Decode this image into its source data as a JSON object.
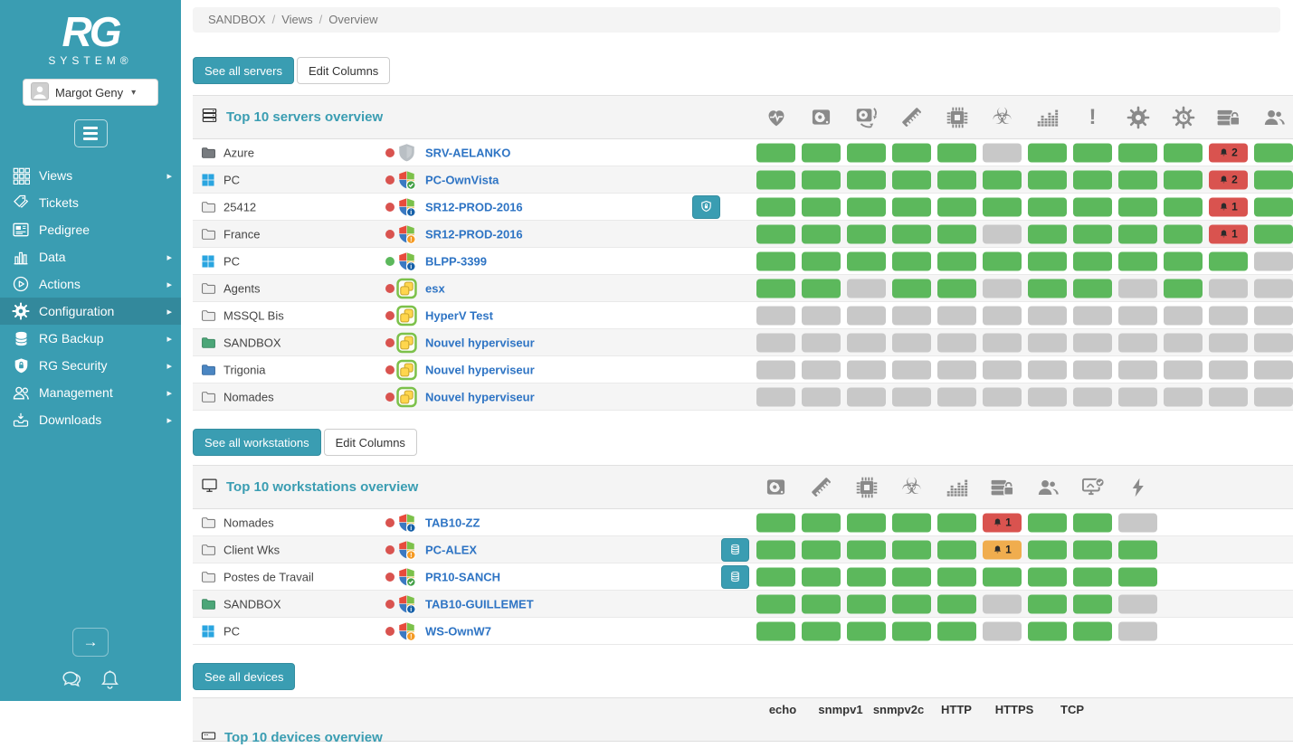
{
  "colors": {
    "accent": "#3a9db2",
    "green": "#5cb85c",
    "gray": "#c8c8c8",
    "red": "#d9534f",
    "orange": "#f0ad4e",
    "link_blue": "#2e74c4"
  },
  "sidebar": {
    "logo_text": "RG",
    "logo_subtext": "SYSTEM®",
    "user_name": "Margot Geny",
    "footer_icons": [
      "collapse-arrow-icon",
      "chat-icon",
      "bell-outline-icon"
    ],
    "items": [
      {
        "label": "Views",
        "icon": "grid-icon",
        "arrow": true,
        "active": false
      },
      {
        "label": "Tickets",
        "icon": "tags-icon",
        "arrow": false,
        "active": false
      },
      {
        "label": "Pedigree",
        "icon": "newspaper-icon",
        "arrow": false,
        "active": false
      },
      {
        "label": "Data",
        "icon": "bar-chart-icon",
        "arrow": true,
        "active": false
      },
      {
        "label": "Actions",
        "icon": "play-circle-icon",
        "arrow": true,
        "active": false
      },
      {
        "label": "Configuration",
        "icon": "gear-icon",
        "arrow": true,
        "active": true
      },
      {
        "label": "RG Backup",
        "icon": "database-icon",
        "arrow": true,
        "active": false
      },
      {
        "label": "RG Security",
        "icon": "shield-lock-icon",
        "arrow": true,
        "active": false
      },
      {
        "label": "Management",
        "icon": "users-icon",
        "arrow": true,
        "active": false
      },
      {
        "label": "Downloads",
        "icon": "download-icon",
        "arrow": true,
        "active": false
      }
    ]
  },
  "breadcrumb": {
    "parts": [
      "SANDBOX",
      "Views",
      "Overview"
    ],
    "separator": "/"
  },
  "servers": {
    "see_all": "See all servers",
    "edit_columns": "Edit Columns",
    "title": "Top 10 servers overview",
    "title_icon": "servers-icon",
    "column_icons": [
      "health-icon",
      "hdd-icon",
      "hdd-transfer-icon",
      "ram-icon",
      "cpu-icon",
      "antivirus-icon",
      "processes-icon",
      "alerts-icon",
      "services-icon",
      "scheduled-tasks-icon",
      "backup-security-icon",
      "sessions-icon"
    ],
    "rows": [
      {
        "group": "Azure",
        "group_icon": "folder-dark-icon",
        "agent_status": "red",
        "os_icon": "shield-gray-icon",
        "name": "SRV-AELANKO",
        "action": null,
        "cells": [
          "green",
          "green",
          "green",
          "green",
          "green",
          "gray",
          "green",
          "green",
          "green",
          "green",
          "red:2",
          "green"
        ]
      },
      {
        "group": "PC",
        "group_icon": "windows-icon",
        "agent_status": "red",
        "os_icon": "shield-windows-check-icon",
        "name": "PC-OwnVista",
        "action": null,
        "cells": [
          "green",
          "green",
          "green",
          "green",
          "green",
          "green",
          "green",
          "green",
          "green",
          "green",
          "red:2",
          "green"
        ]
      },
      {
        "group": "25412",
        "group_icon": "folder-gray-icon",
        "agent_status": "red",
        "os_icon": "shield-windows-info-icon",
        "name": "SR12-PROD-2016",
        "action": "security",
        "cells": [
          "green",
          "green",
          "green",
          "green",
          "green",
          "green",
          "green",
          "green",
          "green",
          "green",
          "red:1",
          "green"
        ]
      },
      {
        "group": "France",
        "group_icon": "folder-gray-icon",
        "agent_status": "red",
        "os_icon": "shield-windows-warning-icon",
        "name": "SR12-PROD-2016",
        "action": null,
        "cells": [
          "green",
          "green",
          "green",
          "green",
          "green",
          "gray",
          "green",
          "green",
          "green",
          "green",
          "red:1",
          "green"
        ]
      },
      {
        "group": "PC",
        "group_icon": "windows-icon",
        "agent_status": "green",
        "os_icon": "shield-windows-info-icon",
        "name": "BLPP-3399",
        "action": null,
        "cells": [
          "green",
          "green",
          "green",
          "green",
          "green",
          "green",
          "green",
          "green",
          "green",
          "green",
          "green",
          "gray"
        ]
      },
      {
        "group": "Agents",
        "group_icon": "folder-gray-icon",
        "agent_status": "red",
        "os_icon": "vmware-icon",
        "name": "esx",
        "action": null,
        "cells": [
          "green",
          "green",
          "gray",
          "green",
          "green",
          "gray",
          "green",
          "green",
          "gray",
          "green",
          "gray",
          "gray"
        ]
      },
      {
        "group": "MSSQL Bis",
        "group_icon": "folder-gray-icon",
        "agent_status": "red",
        "os_icon": "vmware-icon",
        "name": "HyperV Test",
        "action": null,
        "cells": [
          "gray",
          "gray",
          "gray",
          "gray",
          "gray",
          "gray",
          "gray",
          "gray",
          "gray",
          "gray",
          "gray",
          "gray"
        ]
      },
      {
        "group": "SANDBOX",
        "group_icon": "folder-green-icon",
        "agent_status": "red",
        "os_icon": "vmware-icon",
        "name": "Nouvel hyperviseur",
        "action": null,
        "cells": [
          "gray",
          "gray",
          "gray",
          "gray",
          "gray",
          "gray",
          "gray",
          "gray",
          "gray",
          "gray",
          "gray",
          "gray"
        ]
      },
      {
        "group": "Trigonia",
        "group_icon": "folder-blue-icon",
        "agent_status": "red",
        "os_icon": "vmware-icon",
        "name": "Nouvel hyperviseur",
        "action": null,
        "cells": [
          "gray",
          "gray",
          "gray",
          "gray",
          "gray",
          "gray",
          "gray",
          "gray",
          "gray",
          "gray",
          "gray",
          "gray"
        ]
      },
      {
        "group": "Nomades",
        "group_icon": "folder-gray-icon",
        "agent_status": "red",
        "os_icon": "vmware-icon",
        "name": "Nouvel hyperviseur",
        "action": null,
        "cells": [
          "gray",
          "gray",
          "gray",
          "gray",
          "gray",
          "gray",
          "gray",
          "gray",
          "gray",
          "gray",
          "gray",
          "gray"
        ]
      }
    ]
  },
  "workstations": {
    "see_all": "See all workstations",
    "edit_columns": "Edit Columns",
    "title": "Top 10 workstations overview",
    "title_icon": "workstations-icon",
    "column_icons": [
      "hdd-icon",
      "ram-icon",
      "cpu-icon",
      "antivirus-icon",
      "processes-icon",
      "backup-security-icon",
      "sessions-icon",
      "software-icon",
      "flash-icon"
    ],
    "rows": [
      {
        "group": "Nomades",
        "group_icon": "folder-gray-icon",
        "agent_status": "red",
        "os_icon": "shield-windows-info-icon",
        "name": "TAB10-ZZ",
        "action": null,
        "cells": [
          "green",
          "green",
          "green",
          "green",
          "green",
          "red:1",
          "green",
          "green",
          "gray"
        ]
      },
      {
        "group": "Client Wks",
        "group_icon": "folder-gray-icon",
        "agent_status": "red",
        "os_icon": "shield-windows-warning-icon",
        "name": "PC-ALEX",
        "action": "backup",
        "cells": [
          "green",
          "green",
          "green",
          "green",
          "green",
          "orange:1",
          "green",
          "green",
          "green"
        ]
      },
      {
        "group": "Postes de Travail",
        "group_icon": "folder-gray-icon",
        "agent_status": "red",
        "os_icon": "shield-windows-check-icon",
        "name": "PR10-SANCH",
        "action": "backup",
        "cells": [
          "green",
          "green",
          "green",
          "green",
          "green",
          "green",
          "green",
          "green",
          "green"
        ]
      },
      {
        "group": "SANDBOX",
        "group_icon": "folder-green-icon",
        "agent_status": "red",
        "os_icon": "shield-windows-info-icon",
        "name": "TAB10-GUILLEMET",
        "action": null,
        "cells": [
          "green",
          "green",
          "green",
          "green",
          "green",
          "gray",
          "green",
          "green",
          "gray"
        ]
      },
      {
        "group": "PC",
        "group_icon": "windows-icon",
        "agent_status": "red",
        "os_icon": "shield-windows-warning-icon",
        "name": "WS-OwnW7",
        "action": null,
        "cells": [
          "green",
          "green",
          "green",
          "green",
          "green",
          "gray",
          "green",
          "green",
          "gray"
        ]
      }
    ]
  },
  "devices": {
    "see_all": "See all devices",
    "title": "Top 10 devices overview",
    "title_icon": "devices-icon",
    "columns": [
      "echo",
      "snmpv1",
      "snmpv2c",
      "HTTP",
      "HTTPS",
      "TCP"
    ]
  }
}
